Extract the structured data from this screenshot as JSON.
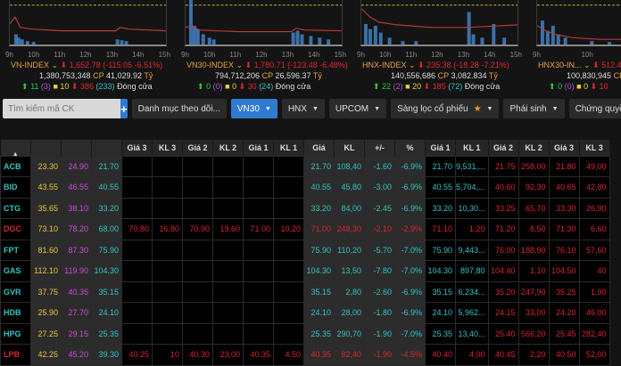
{
  "indices": [
    {
      "name": "VN-INDEX",
      "value": "1,652.78",
      "change": "(-115.05 -6.51%)",
      "volume": "1,380,753,348",
      "cp_label": "CP",
      "value_traded": "41,029.92",
      "unit": "Tỷ",
      "up": "11",
      "ceil": "(3)",
      "flat": "10",
      "down": "386",
      "floor": "(233)",
      "status": "Đóng cửa",
      "x_ticks": [
        "9h",
        "10h",
        "11h",
        "12h",
        "13h",
        "14h",
        "15h"
      ]
    },
    {
      "name": "VN30-INDEX",
      "value": "1,780.71",
      "change": "(-123.48 -6.48%)",
      "volume": "794,712,206",
      "cp_label": "CP",
      "value_traded": "26,596.37",
      "unit": "Tỷ",
      "up": "0",
      "ceil": "(0)",
      "flat": "0",
      "down": "30",
      "floor": "(24)",
      "status": "Đóng cửa",
      "x_ticks": [
        "9h",
        "10h",
        "11h",
        "12h",
        "13h",
        "14h",
        "15h"
      ]
    },
    {
      "name": "HNX-INDEX",
      "value": "235.38",
      "change": "(-18.28 -7.21%)",
      "volume": "140,556,686",
      "cp_label": "CP",
      "value_traded": "3,082.834",
      "unit": "Tỷ",
      "up": "22",
      "ceil": "(2)",
      "flat": "20",
      "down": "185",
      "floor": "(72)",
      "status": "Đóng cửa",
      "x_ticks": [
        "9h",
        "10h",
        "11h",
        "12h",
        "13h",
        "14h",
        "15h"
      ]
    },
    {
      "name": "HNX30-IN...",
      "value": "512.4",
      "change": "",
      "volume": "100,830,945",
      "cp_label": "CP",
      "value_traded": "",
      "unit": "",
      "up": "0",
      "ceil": "(0)",
      "flat": "0",
      "down": "10",
      "floor": "",
      "status": "",
      "x_ticks": [
        "9h",
        "10h",
        "11h",
        "12h"
      ]
    }
  ],
  "toolbar": {
    "search_placeholder": "Tìm kiếm mã CK",
    "add_label": "+",
    "watchlist_label": "Danh mục theo dõi...",
    "vn30_label": "VN30",
    "hnx_label": "HNX",
    "upcom_label": "UPCOM",
    "screener_label": "Sàng lọc cổ phiếu",
    "derivatives_label": "Phái sinh",
    "warrants_label": "Chứng quyền"
  },
  "table": {
    "sort_icon": "▲",
    "headers": [
      "",
      "",
      "",
      "",
      "Giá 3",
      "KL 3",
      "Giá 2",
      "KL 2",
      "Giá 1",
      "KL 1",
      "Giá",
      "KL",
      "+/-",
      "%",
      "Giá 1",
      "KL 1",
      "Giá 2",
      "KL 2",
      "Giá 3",
      "KL 3"
    ],
    "rows": [
      {
        "sym": "ACB",
        "color": "cyan",
        "ref": "23.30",
        "ceil": "24.90",
        "floor": "21.70",
        "b3": "",
        "bv3": "",
        "b2": "",
        "bv2": "",
        "b1": "",
        "bv1": "",
        "price": "21.70",
        "vol": "108,40",
        "chg": "-1.60",
        "pct": "-6.9%",
        "mcolor": "cyan",
        "a1": "21.70",
        "av1": "9,531,...",
        "a2": "21.75",
        "av2": "258,00",
        "a3": "21.80",
        "av3": "49,00",
        "bcolor": "red",
        "a1color": "cyan"
      },
      {
        "sym": "BID",
        "color": "cyan",
        "ref": "43.55",
        "ceil": "46.55",
        "floor": "40.55",
        "b3": "",
        "bv3": "",
        "b2": "",
        "bv2": "",
        "b1": "",
        "bv1": "",
        "price": "40.55",
        "vol": "45,80",
        "chg": "-3.00",
        "pct": "-6.9%",
        "mcolor": "cyan",
        "a1": "40.55",
        "av1": "5,704,...",
        "a2": "40.60",
        "av2": "92,30",
        "a3": "40.65",
        "av3": "42,80",
        "bcolor": "red",
        "a1color": "cyan"
      },
      {
        "sym": "CTG",
        "color": "cyan",
        "ref": "35.65",
        "ceil": "38.10",
        "floor": "33.20",
        "b3": "",
        "bv3": "",
        "b2": "",
        "bv2": "",
        "b1": "",
        "bv1": "",
        "price": "33.20",
        "vol": "84,00",
        "chg": "-2.45",
        "pct": "-6.9%",
        "mcolor": "cyan",
        "a1": "33.20",
        "av1": "10,30...",
        "a2": "33.25",
        "av2": "65,70",
        "a3": "33.30",
        "av3": "26,90",
        "bcolor": "red",
        "a1color": "cyan"
      },
      {
        "sym": "DGC",
        "color": "red",
        "ref": "73.10",
        "ceil": "78.20",
        "floor": "68.00",
        "b3": "70.80",
        "bv3": "16,80",
        "b2": "70.90",
        "bv2": "19,60",
        "b1": "71.00",
        "bv1": "10,20",
        "price": "71.00",
        "vol": "248,30",
        "chg": "-2.10",
        "pct": "-2.9%",
        "mcolor": "red",
        "a1": "71.10",
        "av1": "1,20",
        "a2": "71.20",
        "av2": "8,50",
        "a3": "71.30",
        "av3": "6,60",
        "bcolor": "red",
        "a1color": "red"
      },
      {
        "sym": "FPT",
        "color": "cyan",
        "ref": "81.60",
        "ceil": "87.30",
        "floor": "75.90",
        "b3": "",
        "bv3": "",
        "b2": "",
        "bv2": "",
        "b1": "",
        "bv1": "",
        "price": "75.90",
        "vol": "110,20",
        "chg": "-5.70",
        "pct": "-7.0%",
        "mcolor": "cyan",
        "a1": "75.90",
        "av1": "9,443...",
        "a2": "76.00",
        "av2": "188,90",
        "a3": "76.10",
        "av3": "57,60",
        "bcolor": "red",
        "a1color": "cyan"
      },
      {
        "sym": "GAS",
        "color": "cyan",
        "ref": "112.10",
        "ceil": "119.90",
        "floor": "104.30",
        "b3": "",
        "bv3": "",
        "b2": "",
        "bv2": "",
        "b1": "",
        "bv1": "",
        "price": "104.30",
        "vol": "13,50",
        "chg": "-7.80",
        "pct": "-7.0%",
        "mcolor": "cyan",
        "a1": "104.30",
        "av1": "897,80",
        "a2": "104.40",
        "av2": "1,10",
        "a3": "104.50",
        "av3": "40",
        "bcolor": "red",
        "a1color": "cyan"
      },
      {
        "sym": "GVR",
        "color": "cyan",
        "ref": "37.75",
        "ceil": "40.35",
        "floor": "35.15",
        "b3": "",
        "bv3": "",
        "b2": "",
        "bv2": "",
        "b1": "",
        "bv1": "",
        "price": "35.15",
        "vol": "2,80",
        "chg": "-2.60",
        "pct": "-6.9%",
        "mcolor": "cyan",
        "a1": "35.15",
        "av1": "6,234...",
        "a2": "35.20",
        "av2": "247,90",
        "a3": "35.25",
        "av3": "1,90",
        "bcolor": "red",
        "a1color": "cyan"
      },
      {
        "sym": "HDB",
        "color": "cyan",
        "ref": "25.90",
        "ceil": "27.70",
        "floor": "24.10",
        "b3": "",
        "bv3": "",
        "b2": "",
        "bv2": "",
        "b1": "",
        "bv1": "",
        "price": "24.10",
        "vol": "28,00",
        "chg": "-1.80",
        "pct": "-6.9%",
        "mcolor": "cyan",
        "a1": "24.10",
        "av1": "5,962...",
        "a2": "24.15",
        "av2": "33,00",
        "a3": "24.20",
        "av3": "46,00",
        "bcolor": "red",
        "a1color": "cyan"
      },
      {
        "sym": "HPG",
        "color": "cyan",
        "ref": "27.25",
        "ceil": "29.15",
        "floor": "25.35",
        "b3": "",
        "bv3": "",
        "b2": "",
        "bv2": "",
        "b1": "",
        "bv1": "",
        "price": "25.35",
        "vol": "290,70",
        "chg": "-1.90",
        "pct": "-7.0%",
        "mcolor": "cyan",
        "a1": "25.35",
        "av1": "13,40...",
        "a2": "25.40",
        "av2": "566,20",
        "a3": "25.45",
        "av3": "282,40",
        "bcolor": "red",
        "a1color": "cyan"
      },
      {
        "sym": "LPB",
        "color": "red",
        "ref": "42.25",
        "ceil": "45.20",
        "floor": "39.30",
        "b3": "40.25",
        "bv3": "10",
        "b2": "40.30",
        "bv2": "23,00",
        "b1": "40.35",
        "bv1": "4,50",
        "price": "40.35",
        "vol": "82,40",
        "chg": "-1.90",
        "pct": "-4.5%",
        "mcolor": "red",
        "a1": "40.40",
        "av1": "4,00",
        "a2": "40.45",
        "av2": "2,20",
        "a3": "40.50",
        "av3": "52,00",
        "bcolor": "red",
        "a1color": "red"
      }
    ]
  },
  "colors": {
    "accent": "#2f7bd1",
    "down": "#e3262f",
    "up": "#2ecc40",
    "ceiling": "#c94ed6",
    "reference": "#e8c43d",
    "floor": "#35c2c2"
  }
}
